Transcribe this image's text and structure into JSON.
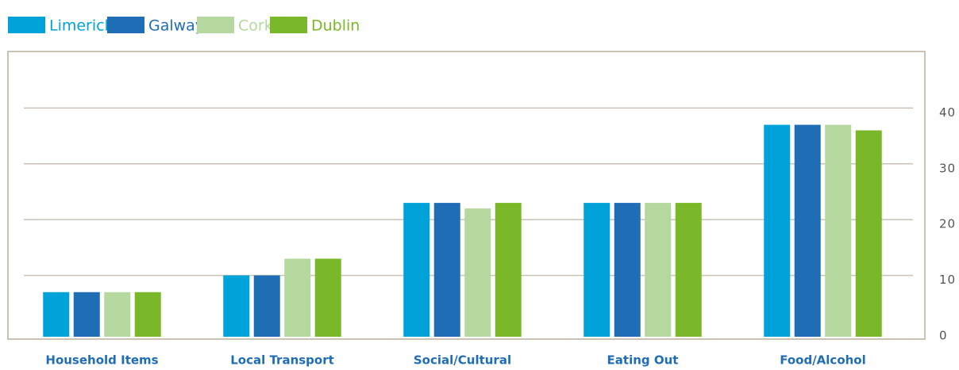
{
  "chart_data": {
    "type": "bar",
    "categories": [
      "Household Items",
      "Local Transport",
      "Social/Cultural",
      "Eating Out",
      "Food/Alcohol"
    ],
    "series": [
      {
        "name": "Limerick",
        "color": "#00a3d9",
        "values": [
          7,
          10,
          23,
          23,
          37
        ]
      },
      {
        "name": "Galway",
        "color": "#1f6db5",
        "values": [
          7,
          10,
          23,
          23,
          37
        ]
      },
      {
        "name": "Cork",
        "color": "#b5d89f",
        "values": [
          7,
          13,
          22,
          23,
          37
        ]
      },
      {
        "name": "Dublin",
        "color": "#7ab829",
        "values": [
          7,
          13,
          23,
          23,
          36
        ]
      }
    ],
    "ylim": [
      0,
      50
    ],
    "yticks": [
      0,
      10,
      20,
      30,
      40
    ],
    "grid": true,
    "legend": "top-left",
    "y_axis_side": "right"
  }
}
